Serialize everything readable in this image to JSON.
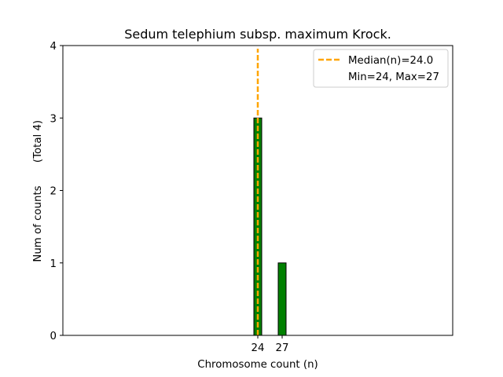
{
  "chart_data": {
    "type": "bar",
    "title": "Sedum telephium subsp. maximum Krock.",
    "xlabel": "Chromosome count (n)",
    "ylabel": "Num of counts",
    "ylabel_total": "(Total 4)",
    "xlim": [
      0,
      48
    ],
    "ylim": [
      0,
      4
    ],
    "y_ticks": [
      "0",
      "1",
      "2",
      "3",
      "4"
    ],
    "x_ticks": [
      "24",
      "27"
    ],
    "bars": [
      {
        "x": 24,
        "value": 3
      },
      {
        "x": 27,
        "value": 1
      }
    ],
    "bar_color": "#008000",
    "bar_edge_color": "#000000",
    "median": 24.0,
    "median_color": "#FFA500",
    "grid": false,
    "legend": {
      "placement": "top-right",
      "median_entry": "Median(n)=24.0",
      "range_entry": "Min=24, Max=27"
    }
  }
}
